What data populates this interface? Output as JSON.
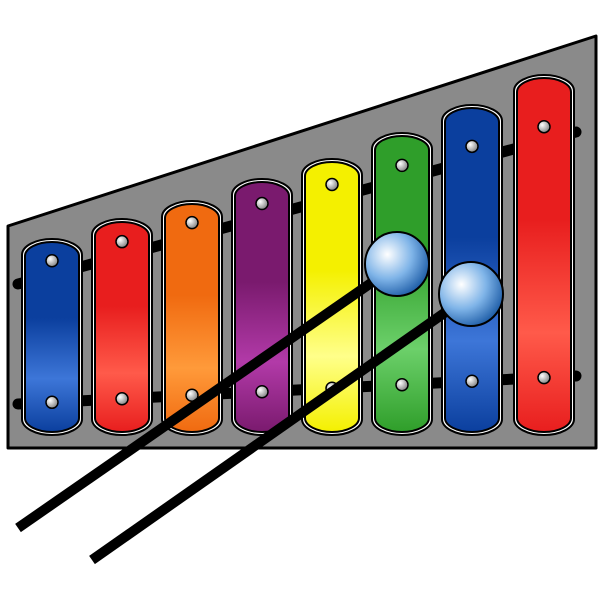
{
  "illustration": {
    "subject": "xylophone",
    "frame_color": "#8a8a8a",
    "rail_color": "#000000",
    "bars": [
      {
        "name": "blue",
        "color": "#0b3f9e",
        "highlight": "#3d76d8"
      },
      {
        "name": "red",
        "color": "#e81e1e",
        "highlight": "#ff5a4a"
      },
      {
        "name": "orange",
        "color": "#f06a10",
        "highlight": "#ff9a3a"
      },
      {
        "name": "purple",
        "color": "#7a1a6e",
        "highlight": "#b23aa8"
      },
      {
        "name": "yellow",
        "color": "#f4f000",
        "highlight": "#ffff8a"
      },
      {
        "name": "green",
        "color": "#2f9e2a",
        "highlight": "#6cd06a"
      },
      {
        "name": "blue",
        "color": "#0b3f9e",
        "highlight": "#3d76d8"
      },
      {
        "name": "red",
        "color": "#e81e1e",
        "highlight": "#ff5a4a"
      }
    ],
    "mallets": [
      {
        "name": "mallet-1",
        "head_color": "#7fb4e8"
      },
      {
        "name": "mallet-2",
        "head_color": "#7fb4e8"
      }
    ]
  }
}
